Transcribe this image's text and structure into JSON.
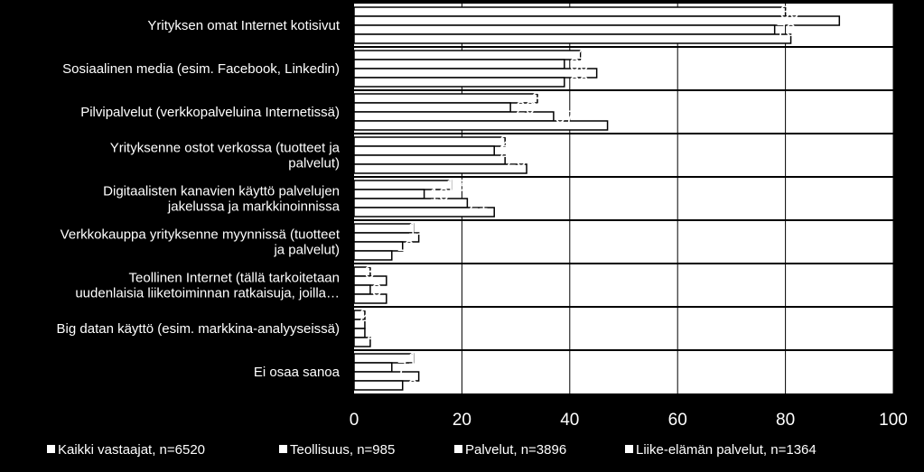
{
  "chart_data": {
    "type": "bar",
    "orientation": "horizontal",
    "title": "",
    "xlabel": "",
    "ylabel": "",
    "xlim": [
      0,
      100
    ],
    "x_ticks": [
      "0",
      "20",
      "40",
      "60",
      "80",
      "100"
    ],
    "grid": true,
    "legend_position": "bottom",
    "categories": [
      [
        "Yrityksen omat Internet kotisivut"
      ],
      [
        "Sosiaalinen media (esim. Facebook, Linkedin)"
      ],
      [
        "Pilvipalvelut  (verkkopalveluina Internetissä)"
      ],
      [
        "Yrityksenne ostot verkossa (tuotteet ja",
        "palvelut)"
      ],
      [
        "Digitaalisten kanavien käyttö palvelujen",
        "jakelussa ja markkinoinnissa"
      ],
      [
        "Verkkokauppa yrityksenne myynnissä (tuotteet",
        "ja palvelut)"
      ],
      [
        "Teollinen Internet (tällä tarkoitetaan",
        "uudenlaisia liiketoiminnan ratkaisuja, joilla…"
      ],
      [
        "Big datan käyttö (esim. markkina-analyyseissä)"
      ],
      [
        "Ei osaa sanoa"
      ]
    ],
    "series": [
      {
        "name": "Kaikki vastaajat, n=6520",
        "values": [
          80,
          42,
          34,
          28,
          18,
          11,
          3,
          2,
          11
        ]
      },
      {
        "name": "Teollisuus, n=985",
        "values": [
          90,
          39,
          29,
          26,
          13,
          12,
          6,
          2,
          7
        ]
      },
      {
        "name": "Palvelut, n=3896",
        "values": [
          78,
          45,
          37,
          28,
          21,
          9,
          3,
          2,
          12
        ]
      },
      {
        "name": "Liike-elämän palvelut, n=1364",
        "values": [
          81,
          39,
          47,
          32,
          26,
          7,
          6,
          3,
          9
        ]
      }
    ],
    "colors": {
      "background": "#000000",
      "bar_fill": "#ffffff",
      "bar_stroke": "#000000",
      "text": "#ffffff",
      "grid": "#ffffff"
    }
  }
}
